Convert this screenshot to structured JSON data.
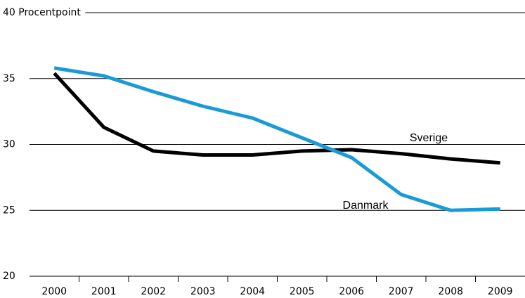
{
  "chart_data": {
    "type": "line",
    "categories": [
      "2000",
      "2001",
      "2002",
      "2003",
      "2004",
      "2005",
      "2006",
      "2007",
      "2008",
      "2009"
    ],
    "series": [
      {
        "name": "Sverige",
        "color": "#000000",
        "values": [
          35.4,
          31.3,
          29.5,
          29.2,
          29.2,
          29.5,
          29.6,
          29.3,
          28.9,
          28.6
        ]
      },
      {
        "name": "Danmark",
        "color": "#1a9ad6",
        "values": [
          35.8,
          35.2,
          34.0,
          32.9,
          32.0,
          30.5,
          29.0,
          26.2,
          25.0,
          25.1
        ]
      }
    ],
    "ylim": [
      20,
      40
    ],
    "yticks": [
      20,
      25,
      30,
      35,
      {
        "value": 40,
        "label": "40 Procentpoint"
      }
    ],
    "grid": true
  }
}
